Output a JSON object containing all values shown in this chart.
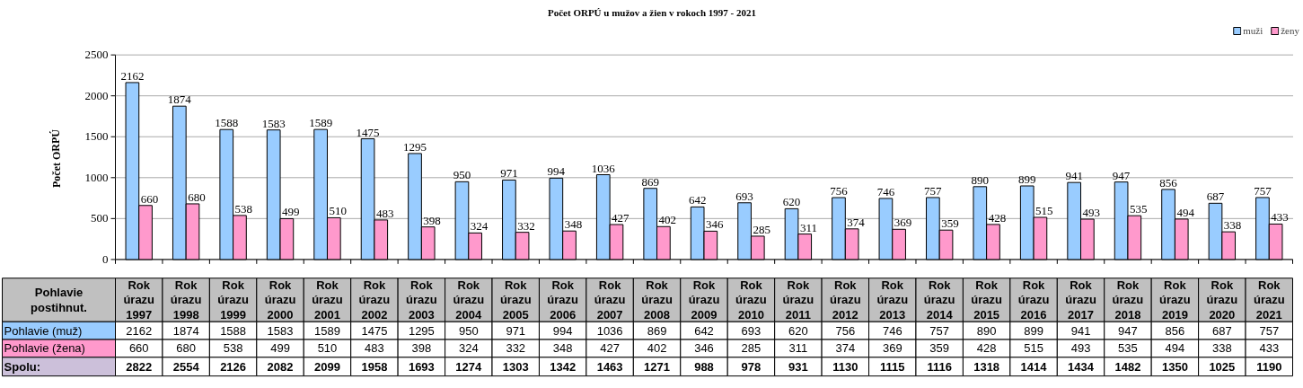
{
  "chart_data": {
    "type": "bar",
    "title": "Počet ORPÚ u mužov a žien v rokoch 1997 - 2021",
    "ylabel": "Počet  ORPÚ",
    "categories": [
      "Rok úrazu 1997",
      "Rok úrazu 1998",
      "Rok úrazu 1999",
      "Rok úrazu 2000",
      "Rok úrazu 2001",
      "Rok úrazu 2002",
      "Rok úrazu 2003",
      "Rok úrazu 2004",
      "Rok úrazu 2005",
      "Rok úrazu 2006",
      "Rok úrazu 2007",
      "Rok úrazu 2008",
      "Rok úrazu 2009",
      "Rok úrazu 2010",
      "Rok úrazu 2011",
      "Rok úrazu 2012",
      "Rok úrazu 2013",
      "Rok úrazu 2014",
      "Rok úrazu 2015",
      "Rok úrazu 2016",
      "Rok úrazu 2017",
      "Rok úrazu 2018",
      "Rok úrazu 2019",
      "Rok úrazu 2020",
      "Rok úrazu 2021"
    ],
    "series": [
      {
        "name": "muži",
        "color": "#99ccff",
        "values": [
          2162,
          1874,
          1588,
          1583,
          1589,
          1475,
          1295,
          950,
          971,
          994,
          1036,
          869,
          642,
          693,
          620,
          756,
          746,
          757,
          890,
          899,
          941,
          947,
          856,
          687,
          757
        ]
      },
      {
        "name": "ženy",
        "color": "#ff99cc",
        "values": [
          660,
          680,
          538,
          499,
          510,
          483,
          398,
          324,
          332,
          348,
          427,
          402,
          346,
          285,
          311,
          374,
          369,
          359,
          428,
          515,
          493,
          535,
          494,
          338,
          433
        ]
      }
    ],
    "annotations": [
      "Pohlavie postihnut.",
      "Pohlavie (muž)",
      "Pohlavie (žena)",
      "Spolu:",
      "2162",
      "1874",
      "1588",
      "1583",
      "1589",
      "1475",
      "1295",
      "950",
      "971",
      "994",
      "1036",
      "869",
      "642",
      "693",
      "620",
      "756",
      "746",
      "757",
      "890",
      "899",
      "941",
      "947",
      "856",
      "687",
      "757",
      "660",
      "680",
      "538",
      "499",
      "510",
      "483",
      "398",
      "324",
      "332",
      "348",
      "427",
      "402",
      "346",
      "285",
      "311",
      "374",
      "369",
      "359",
      "428",
      "515",
      "493",
      "535",
      "494",
      "338",
      "433",
      "2822",
      "2554",
      "2126",
      "2082",
      "2099",
      "1958",
      "1693",
      "1274",
      "1303",
      "1342",
      "1463",
      "1271",
      "988",
      "978",
      "931",
      "1130",
      "1115",
      "1116",
      "1318",
      "1414",
      "1434",
      "1482",
      "1350",
      "1025",
      "1190"
    ],
    "ylim": [
      0,
      2500
    ],
    "yticks": [
      0,
      500,
      1000,
      1500,
      2000,
      2500
    ],
    "grid": "y",
    "legend": "top right",
    "data_labels": true
  }
}
